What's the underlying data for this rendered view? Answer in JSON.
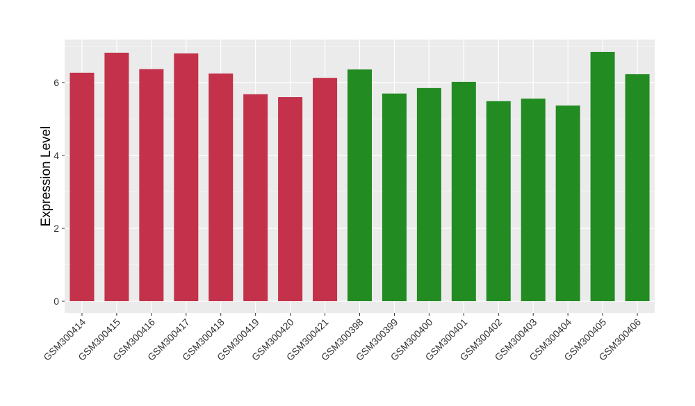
{
  "chart_data": {
    "type": "bar",
    "title": "",
    "xlabel": "",
    "ylabel": "Expression Level",
    "ylim": [
      -0.3,
      7.2
    ],
    "yticks": [
      0,
      2,
      4,
      6
    ],
    "grid": true,
    "legend": "none",
    "categories": [
      "GSM300414",
      "GSM300415",
      "GSM300416",
      "GSM300417",
      "GSM300418",
      "GSM300419",
      "GSM300420",
      "GSM300421",
      "GSM300398",
      "GSM300399",
      "GSM300400",
      "GSM300401",
      "GSM300402",
      "GSM300403",
      "GSM300404",
      "GSM300405",
      "GSM300406"
    ],
    "values": [
      6.27,
      6.82,
      6.37,
      6.8,
      6.25,
      5.68,
      5.6,
      6.13,
      6.36,
      5.7,
      5.85,
      6.02,
      5.49,
      5.56,
      5.37,
      6.84,
      6.23
    ],
    "groups": [
      "red",
      "red",
      "red",
      "red",
      "red",
      "red",
      "red",
      "red",
      "green",
      "green",
      "green",
      "green",
      "green",
      "green",
      "green",
      "green",
      "green"
    ],
    "colors": {
      "red": "#c3314a",
      "green": "#228b22"
    },
    "panel_background": "#ebebeb"
  }
}
